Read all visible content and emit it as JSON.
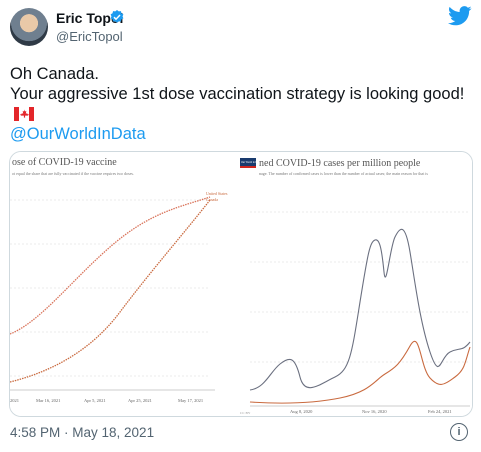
{
  "author": {
    "name": "Eric Topol",
    "handle": "@EricTopol"
  },
  "tweet": {
    "line1": "Oh Canada.",
    "line2": "Your aggressive 1st dose vaccination strategy is looking good!",
    "mention": "@OurWorldInData"
  },
  "left_chart": {
    "title": "ose of COVID-19 vaccine",
    "subtitle": "ot equal the share that are fully vaccinated if the vaccine requires two doses.",
    "legend": [
      "United States",
      "Canada"
    ],
    "x_ticks": [
      "2021",
      "Mar 16, 2021",
      "Apr 5, 2021",
      "Apr 25, 2021",
      "May 17, 2021"
    ],
    "colors": {
      "united_states": "#d9735a",
      "canada": "#c96a3f"
    }
  },
  "right_chart": {
    "logo": "Our World in Data",
    "title": "ned COVID-19 cases per million people",
    "subtitle": "nage. The number of confirmed cases is lower than the number of actual cases; the main reason for that is",
    "x_ticks": [
      "Aug 8, 2020",
      "Nov 16, 2020",
      "Feb 24, 2021"
    ],
    "axis_note": "CC BY",
    "colors": {
      "united_states": "#6b7080",
      "canada": "#c96a3f"
    }
  },
  "footer": {
    "timestamp": "4:58 PM · May 18, 2021",
    "info": "i"
  }
}
